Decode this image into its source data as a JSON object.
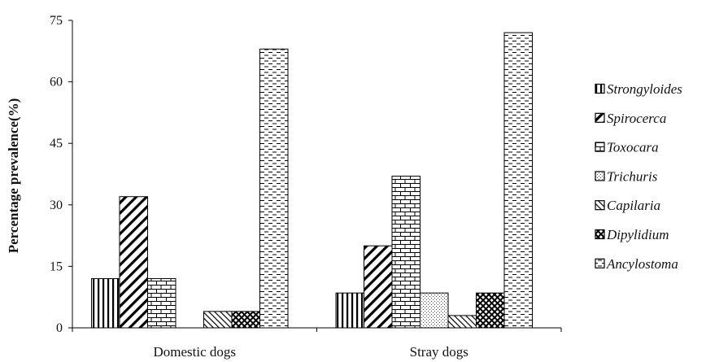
{
  "chart_data": {
    "type": "bar",
    "title": "",
    "xlabel": "",
    "ylabel": "Percentage prevalence(%)",
    "ylim": [
      0,
      75
    ],
    "yticks": [
      0,
      15,
      30,
      45,
      60,
      75
    ],
    "grid": false,
    "legend_position": "right",
    "categories": [
      "Domestic dogs",
      "Stray dogs"
    ],
    "series": [
      {
        "name": "Strongyloides",
        "pattern": "vertical-lines",
        "values": [
          12,
          8.5
        ]
      },
      {
        "name": "Spirocerca",
        "pattern": "diagonal-down",
        "values": [
          32,
          20
        ]
      },
      {
        "name": "Toxocara",
        "pattern": "brick",
        "values": [
          12,
          37
        ]
      },
      {
        "name": "Trichuris",
        "pattern": "dots",
        "values": [
          0,
          8.5
        ]
      },
      {
        "name": "Capilaria",
        "pattern": "diagonal-up",
        "values": [
          4,
          3
        ]
      },
      {
        "name": "Dipylidium",
        "pattern": "cross-hatch",
        "values": [
          4,
          8.5
        ]
      },
      {
        "name": "Ancylostoma",
        "pattern": "dashes",
        "values": [
          68,
          72
        ]
      }
    ]
  }
}
